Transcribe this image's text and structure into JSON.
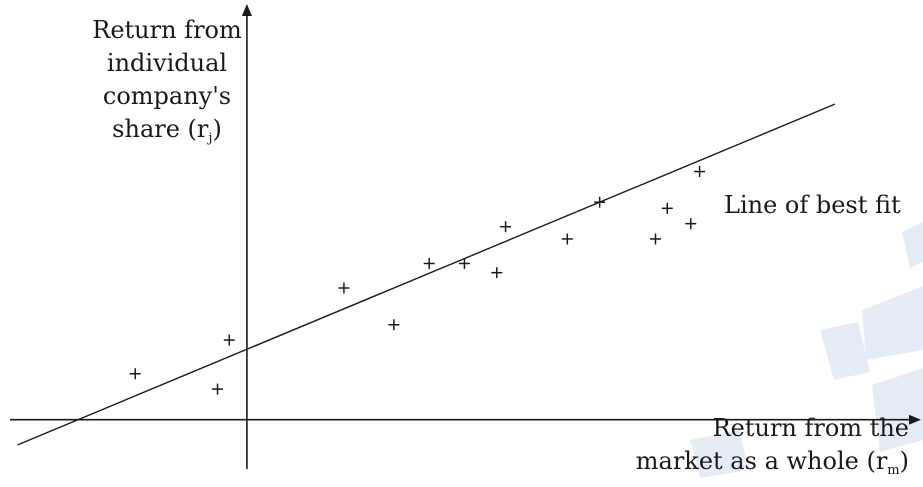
{
  "chart_data": {
    "type": "scatter",
    "y_axis_label": {
      "lines": [
        "Return from",
        "individual",
        "company's"
      ],
      "last_line_text": "share (r",
      "last_line_sub": "j",
      "last_line_close": ")"
    },
    "x_axis_label": {
      "line1": "Return from the",
      "line2_text": "market as a whole (r",
      "line2_sub": "m",
      "line2_close": ")"
    },
    "best_fit_label": "Line of best fit",
    "points": [
      {
        "x": -3.8,
        "y": 1.5
      },
      {
        "x": -1.0,
        "y": 1.0
      },
      {
        "x": -0.6,
        "y": 2.6
      },
      {
        "x": 3.3,
        "y": 4.3
      },
      {
        "x": 5.0,
        "y": 3.1
      },
      {
        "x": 6.2,
        "y": 5.1
      },
      {
        "x": 7.4,
        "y": 5.1
      },
      {
        "x": 8.5,
        "y": 4.8
      },
      {
        "x": 8.8,
        "y": 6.3
      },
      {
        "x": 10.9,
        "y": 5.9
      },
      {
        "x": 12.0,
        "y": 7.1
      },
      {
        "x": 13.9,
        "y": 5.9
      },
      {
        "x": 14.3,
        "y": 6.9
      },
      {
        "x": 15.1,
        "y": 6.4
      },
      {
        "x": 15.4,
        "y": 8.1
      }
    ],
    "best_fit": {
      "intercept": 2.3,
      "slope": 0.4
    },
    "xlim": [
      -8.4,
      23.0
    ],
    "ylim": [
      -2.0,
      13.7
    ],
    "grid": false,
    "colors": {
      "ink": "#1a1a1a",
      "watermark": "#e6ecf6"
    }
  }
}
